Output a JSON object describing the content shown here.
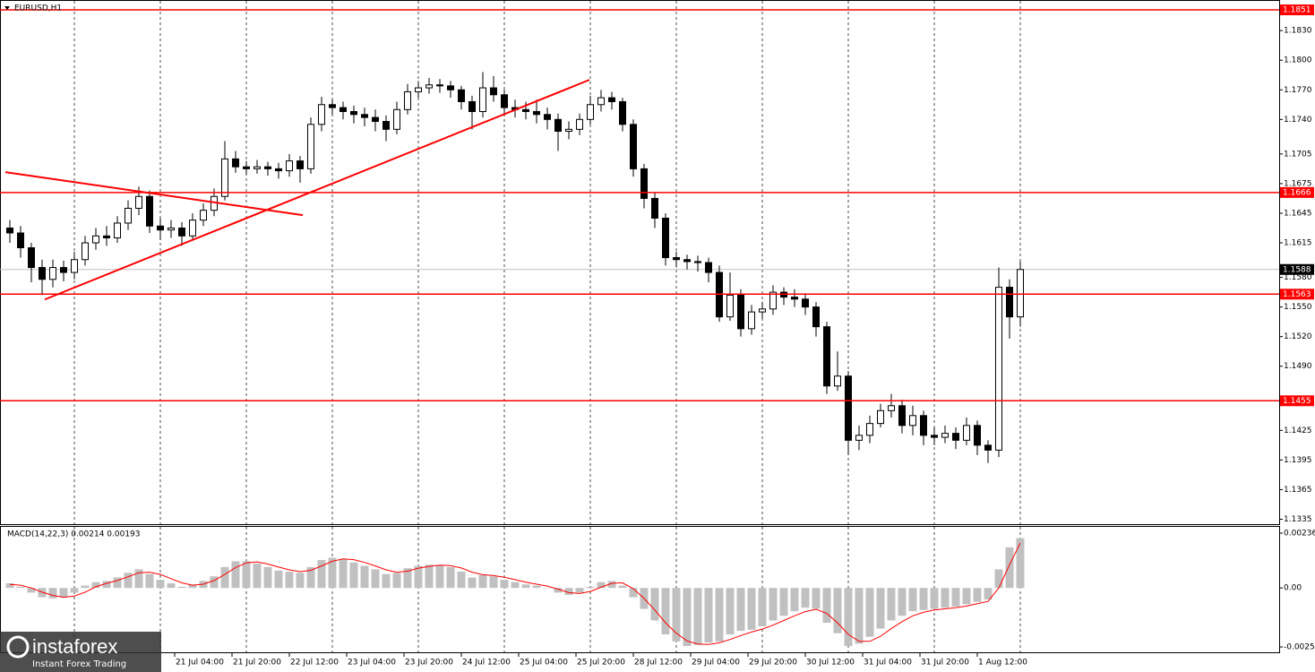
{
  "chart_data": [
    {
      "type": "candlestick",
      "title": "EURUSD,H1",
      "xlim": [
        -0.75,
        356.25
      ],
      "ylim": [
        1.133,
        1.1861
      ],
      "x": [
        2,
        5,
        8,
        11,
        14,
        17,
        20,
        23,
        26,
        29,
        32,
        35,
        38,
        41,
        44,
        47,
        50,
        53,
        56,
        59,
        62,
        65,
        68,
        71,
        74,
        77,
        80,
        83,
        86,
        89,
        92,
        95,
        98,
        101,
        104,
        107,
        110,
        113,
        116,
        119,
        122,
        125,
        128,
        131,
        134,
        137,
        140,
        143,
        146,
        149,
        152,
        155,
        158,
        161,
        164,
        167,
        170,
        173,
        176,
        179,
        182,
        185,
        188,
        191,
        194,
        197,
        200,
        203,
        206,
        209,
        212,
        215,
        218,
        221,
        224,
        227,
        230,
        233,
        236,
        239,
        242,
        245,
        248,
        251,
        254,
        257,
        260,
        263,
        266,
        269,
        272,
        275,
        278,
        281,
        284
      ],
      "open": [
        1.163,
        1.1625,
        1.161,
        1.159,
        1.1578,
        1.159,
        1.1585,
        1.1598,
        1.1615,
        1.1622,
        1.162,
        1.1635,
        1.165,
        1.1662,
        1.1632,
        1.1628,
        1.163,
        1.1622,
        1.1638,
        1.1648,
        1.1662,
        1.17,
        1.1692,
        1.169,
        1.1692,
        1.169,
        1.1688,
        1.1698,
        1.169,
        1.1735,
        1.1755,
        1.1752,
        1.1748,
        1.1745,
        1.1742,
        1.1738,
        1.173,
        1.175,
        1.1768,
        1.1772,
        1.1775,
        1.1774,
        1.177,
        1.1758,
        1.1748,
        1.1772,
        1.1765,
        1.1752,
        1.175,
        1.1748,
        1.1745,
        1.174,
        1.1728,
        1.173,
        1.174,
        1.1755,
        1.1762,
        1.1758,
        1.1735,
        1.169,
        1.166,
        1.164,
        1.16,
        1.1598,
        1.1596,
        1.1595,
        1.1585,
        1.154,
        1.1562,
        1.1528,
        1.1545,
        1.1548,
        1.1565,
        1.156,
        1.1558,
        1.155,
        1.153,
        1.147,
        1.148,
        1.1415,
        1.142,
        1.1432,
        1.1445,
        1.145,
        1.143,
        1.144,
        1.142,
        1.1418,
        1.1422,
        1.1415,
        1.143,
        1.141,
        1.1405,
        1.157,
        1.154
      ],
      "high": [
        1.1638,
        1.1632,
        1.1615,
        1.1598,
        1.1598,
        1.1597,
        1.1606,
        1.1622,
        1.163,
        1.1632,
        1.1642,
        1.1658,
        1.1672,
        1.1668,
        1.164,
        1.1638,
        1.1636,
        1.1645,
        1.1655,
        1.167,
        1.1718,
        1.1708,
        1.1698,
        1.1699,
        1.1697,
        1.1696,
        1.1705,
        1.1703,
        1.1742,
        1.1763,
        1.176,
        1.1758,
        1.1754,
        1.1752,
        1.175,
        1.1744,
        1.1758,
        1.1776,
        1.1779,
        1.1782,
        1.1781,
        1.1779,
        1.1774,
        1.1764,
        1.1788,
        1.1784,
        1.177,
        1.176,
        1.1758,
        1.176,
        1.1752,
        1.1746,
        1.1738,
        1.1746,
        1.1764,
        1.177,
        1.1768,
        1.1762,
        1.174,
        1.1695,
        1.1666,
        1.1645,
        1.1606,
        1.1603,
        1.1602,
        1.16,
        1.1592,
        1.1585,
        1.1568,
        1.1552,
        1.1555,
        1.1572,
        1.157,
        1.1568,
        1.1564,
        1.1555,
        1.1535,
        1.1505,
        1.1485,
        1.143,
        1.144,
        1.1452,
        1.1462,
        1.1456,
        1.145,
        1.1445,
        1.1428,
        1.143,
        1.1428,
        1.1438,
        1.1435,
        1.1415,
        1.159,
        1.1578,
        1.1596
      ],
      "low": [
        1.1615,
        1.16,
        1.1575,
        1.1562,
        1.157,
        1.1576,
        1.1578,
        1.1592,
        1.1608,
        1.1612,
        1.1615,
        1.1628,
        1.1643,
        1.1625,
        1.1618,
        1.162,
        1.1612,
        1.1618,
        1.1632,
        1.1642,
        1.1658,
        1.1686,
        1.1684,
        1.1685,
        1.1683,
        1.168,
        1.1682,
        1.1676,
        1.1685,
        1.1728,
        1.1745,
        1.174,
        1.1736,
        1.1733,
        1.1728,
        1.1718,
        1.1725,
        1.1745,
        1.1762,
        1.1766,
        1.1767,
        1.1762,
        1.175,
        1.173,
        1.1742,
        1.1758,
        1.1744,
        1.1742,
        1.174,
        1.1736,
        1.173,
        1.1708,
        1.172,
        1.1724,
        1.1735,
        1.1748,
        1.175,
        1.1728,
        1.1682,
        1.165,
        1.163,
        1.1592,
        1.159,
        1.1588,
        1.1586,
        1.1575,
        1.1535,
        1.1536,
        1.152,
        1.1522,
        1.1538,
        1.1542,
        1.1552,
        1.155,
        1.1542,
        1.152,
        1.1462,
        1.1465,
        1.14,
        1.1405,
        1.1412,
        1.1428,
        1.1438,
        1.1422,
        1.142,
        1.141,
        1.141,
        1.1412,
        1.1406,
        1.141,
        1.14,
        1.1392,
        1.1398,
        1.1518,
        1.153
      ],
      "close": [
        1.1625,
        1.161,
        1.159,
        1.1578,
        1.159,
        1.1585,
        1.1598,
        1.1615,
        1.1622,
        1.162,
        1.1635,
        1.165,
        1.1662,
        1.1632,
        1.1628,
        1.163,
        1.1622,
        1.1638,
        1.1648,
        1.1662,
        1.17,
        1.1692,
        1.169,
        1.1692,
        1.169,
        1.1688,
        1.1698,
        1.169,
        1.1735,
        1.1755,
        1.1752,
        1.1748,
        1.1745,
        1.1742,
        1.1738,
        1.173,
        1.175,
        1.1768,
        1.1772,
        1.1775,
        1.1774,
        1.177,
        1.1758,
        1.1748,
        1.1772,
        1.1765,
        1.1752,
        1.175,
        1.1748,
        1.1745,
        1.174,
        1.1728,
        1.173,
        1.174,
        1.1755,
        1.1762,
        1.1758,
        1.1735,
        1.169,
        1.166,
        1.164,
        1.16,
        1.1598,
        1.1596,
        1.1595,
        1.1585,
        1.154,
        1.1562,
        1.1528,
        1.1545,
        1.1548,
        1.1565,
        1.156,
        1.1558,
        1.155,
        1.153,
        1.147,
        1.148,
        1.1415,
        1.142,
        1.1432,
        1.1445,
        1.145,
        1.143,
        1.144,
        1.142,
        1.1418,
        1.1422,
        1.1415,
        1.143,
        1.141,
        1.1405,
        1.157,
        1.154,
        1.1588
      ],
      "yticks": [
        {
          "value": 1.183,
          "label": "1.1830"
        },
        {
          "value": 1.18,
          "label": "1.1800"
        },
        {
          "value": 1.177,
          "label": "1.1770"
        },
        {
          "value": 1.174,
          "label": "1.1740"
        },
        1.1705,
        1.1675,
        1.1645,
        1.1615,
        {
          "value": 1.158,
          "label": "1.1580"
        },
        {
          "value": 1.155,
          "label": "1.1550"
        },
        {
          "value": 1.152,
          "label": "1.1520"
        },
        {
          "value": 1.149,
          "label": "1.1490"
        },
        1.1425,
        1.1395,
        1.1365,
        1.1335
      ],
      "xticks": [
        {
          "value": 48,
          "label": "21 Jul 04:00"
        },
        {
          "value": 64,
          "label": "21 Jul 20:00"
        },
        {
          "value": 80,
          "label": "22 Jul 12:00"
        },
        {
          "value": 96,
          "label": "23 Jul 04:00"
        },
        {
          "value": 112,
          "label": "23 Jul 20:00"
        },
        {
          "value": 128,
          "label": "24 Jul 12:00"
        },
        {
          "value": 144,
          "label": "25 Jul 04:00"
        },
        {
          "value": 160,
          "label": "25 Jul 20:00"
        },
        {
          "value": 176,
          "label": "28 Jul 12:00"
        },
        {
          "value": 192,
          "label": "29 Jul 04:00"
        },
        {
          "value": 208,
          "label": "29 Jul 20:00"
        },
        {
          "value": 224,
          "label": "30 Jul 12:00"
        },
        {
          "value": 240,
          "label": "31 Jul 04:00"
        },
        {
          "value": 256,
          "label": "31 Jul 20:00"
        },
        {
          "value": 272,
          "label": "1 Aug 12:00"
        }
      ],
      "xgrid": [
        20,
        44,
        68,
        92,
        116,
        140,
        164,
        188,
        212,
        236,
        260,
        284
      ],
      "grid": true,
      "levels": [
        1.1851,
        1.1666,
        1.1563,
        1.1455
      ],
      "level_color": "#ff0000",
      "last_price": 1.1588,
      "trendlines": [
        {
          "start": [
            11.75,
            1.15576
          ],
          "end": [
            163.75,
            1.17801
          ]
        },
        {
          "start": [
            0.75,
            1.16866
          ],
          "end": [
            83.75,
            1.1643
          ]
        }
      ],
      "trend_color": "#ff0000"
    },
    {
      "type": "macd",
      "label": "MACD(14,22,3) 0.00214 0.00193",
      "ylim": [
        -0.00277,
        0.00263
      ],
      "yticks": [
        0.00236,
        {
          "value": 0,
          "label": "0.00"
        },
        -0.00254
      ],
      "color": "#c0c0c0",
      "signal_color": "#ff0000",
      "values": [
        0.0002,
        5e-05,
        -0.0002,
        -0.0004,
        -0.00045,
        -0.0004,
        -0.0002,
        0.0001,
        0.00025,
        0.0003,
        0.00045,
        0.00065,
        0.0008,
        0.0006,
        0.00035,
        0.0002,
        5e-05,
        0.00015,
        0.0003,
        0.0005,
        0.0009,
        0.00115,
        0.00115,
        0.00105,
        0.0009,
        0.00075,
        0.0007,
        0.00065,
        0.0009,
        0.0012,
        0.0013,
        0.00125,
        0.0011,
        0.00095,
        0.0008,
        0.0006,
        0.00065,
        0.00085,
        0.00095,
        0.001,
        0.00098,
        0.0009,
        0.0007,
        0.00045,
        0.00055,
        0.0005,
        0.00035,
        0.00025,
        0.00015,
        0.0001,
        0,
        -0.0002,
        -0.0003,
        -0.0002,
        5e-05,
        0.00025,
        0.0003,
        0.0001,
        -0.0004,
        -0.0009,
        -0.0014,
        -0.002,
        -0.0023,
        -0.0025,
        -0.00245,
        -0.00235,
        -0.0023,
        -0.002,
        -0.00185,
        -0.0018,
        -0.00165,
        -0.0014,
        -0.0012,
        -0.001,
        -0.00085,
        -0.0009,
        -0.0015,
        -0.00195,
        -0.0025,
        -0.0024,
        -0.0021,
        -0.00175,
        -0.0014,
        -0.0012,
        -0.001,
        -0.00095,
        -0.0009,
        -0.00085,
        -0.0008,
        -0.0007,
        -0.0006,
        -0.0005,
        0.0008,
        0.00175,
        0.00214
      ],
      "signal": [
        0.00015,
        0.00012,
        0,
        -0.00018,
        -0.00032,
        -0.0004,
        -0.00035,
        -0.00018,
        5e-05,
        0.0002,
        0.00032,
        0.00048,
        0.00065,
        0.00068,
        0.00058,
        0.0004,
        0.00022,
        0.00012,
        0.00016,
        0.00032,
        0.00058,
        0.00088,
        0.00108,
        0.00112,
        0.00103,
        0.0009,
        0.00078,
        0.0007,
        0.00076,
        0.00095,
        0.00115,
        0.00125,
        0.00122,
        0.0011,
        0.00095,
        0.00078,
        0.00068,
        0.00072,
        0.00085,
        0.00093,
        0.00098,
        0.00096,
        0.00086,
        0.00068,
        0.00057,
        0.00053,
        0.00046,
        0.00036,
        0.00025,
        0.00016,
        8e-05,
        -5e-05,
        -0.0002,
        -0.00024,
        -0.00015,
        3e-05,
        0.0002,
        0.00022,
        -3e-05,
        -0.00045,
        -0.00095,
        -0.0015,
        -0.00195,
        -0.00228,
        -0.00242,
        -0.00243,
        -0.00236,
        -0.00222,
        -0.00205,
        -0.0019,
        -0.00177,
        -0.0016,
        -0.0014,
        -0.0012,
        -0.00102,
        -0.00092,
        -0.0011,
        -0.0015,
        -0.002,
        -0.0023,
        -0.0023,
        -0.00208,
        -0.00175,
        -0.00145,
        -0.0012,
        -0.00105,
        -0.00095,
        -0.0009,
        -0.00085,
        -0.00078,
        -0.00068,
        -0.00058,
        0,
        0.001,
        0.00193
      ]
    }
  ],
  "logo": {
    "name": "instaforex",
    "tagline": "Instant Forex Trading"
  }
}
